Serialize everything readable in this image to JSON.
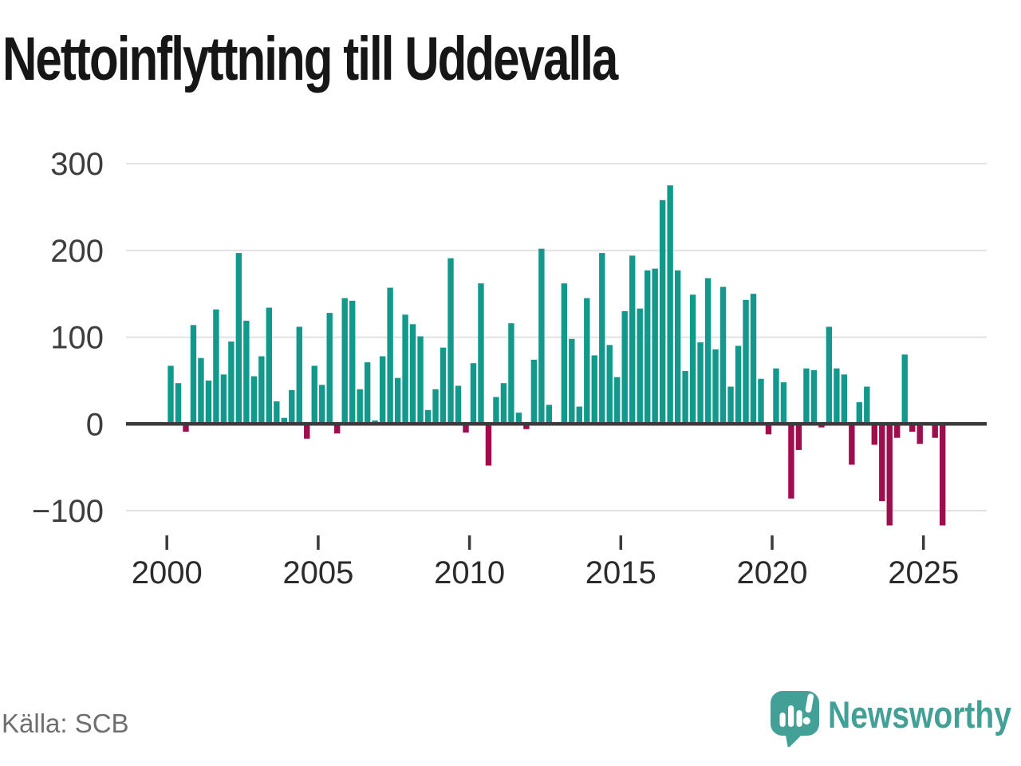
{
  "title": "Nettoinflyttning till Uddevalla",
  "source": "Källa: SCB",
  "branding": {
    "name": "Newsworthy",
    "color": "#42A097"
  },
  "chart_data": {
    "type": "bar",
    "title": "Nettoinflyttning till Uddevalla",
    "x_unit": "quarter",
    "x_range": [
      "2000Q1",
      "2025Q3"
    ],
    "ylim": [
      -130,
      310
    ],
    "grid": true,
    "legend": false,
    "positive_color": "#12998C",
    "negative_color": "#9E0D4D",
    "yticks": [
      {
        "label": "300",
        "value": 300
      },
      {
        "label": "200",
        "value": 200
      },
      {
        "label": "100",
        "value": 100
      },
      {
        "label": "0",
        "value": 0
      },
      {
        "label": "−100",
        "value": -100
      }
    ],
    "xticks": [
      {
        "label": "2000",
        "year": 2000
      },
      {
        "label": "2005",
        "year": 2005
      },
      {
        "label": "2010",
        "year": 2010
      },
      {
        "label": "2015",
        "year": 2015
      },
      {
        "label": "2020",
        "year": 2020
      },
      {
        "label": "2025",
        "year": 2025
      }
    ],
    "quarters": [
      "2000Q1",
      "2000Q2",
      "2000Q3",
      "2000Q4",
      "2001Q1",
      "2001Q2",
      "2001Q3",
      "2001Q4",
      "2002Q1",
      "2002Q2",
      "2002Q3",
      "2002Q4",
      "2003Q1",
      "2003Q2",
      "2003Q3",
      "2003Q4",
      "2004Q1",
      "2004Q2",
      "2004Q3",
      "2004Q4",
      "2005Q1",
      "2005Q2",
      "2005Q3",
      "2005Q4",
      "2006Q1",
      "2006Q2",
      "2006Q3",
      "2006Q4",
      "2007Q1",
      "2007Q2",
      "2007Q3",
      "2007Q4",
      "2008Q1",
      "2008Q2",
      "2008Q3",
      "2008Q4",
      "2009Q1",
      "2009Q2",
      "2009Q3",
      "2009Q4",
      "2010Q1",
      "2010Q2",
      "2010Q3",
      "2010Q4",
      "2011Q1",
      "2011Q2",
      "2011Q3",
      "2011Q4",
      "2012Q1",
      "2012Q2",
      "2012Q3",
      "2012Q4",
      "2013Q1",
      "2013Q2",
      "2013Q3",
      "2013Q4",
      "2014Q1",
      "2014Q2",
      "2014Q3",
      "2014Q4",
      "2015Q1",
      "2015Q2",
      "2015Q3",
      "2015Q4",
      "2016Q1",
      "2016Q2",
      "2016Q3",
      "2016Q4",
      "2017Q1",
      "2017Q2",
      "2017Q3",
      "2017Q4",
      "2018Q1",
      "2018Q2",
      "2018Q3",
      "2018Q4",
      "2019Q1",
      "2019Q2",
      "2019Q3",
      "2019Q4",
      "2020Q1",
      "2020Q2",
      "2020Q3",
      "2020Q4",
      "2021Q1",
      "2021Q2",
      "2021Q3",
      "2021Q4",
      "2022Q1",
      "2022Q2",
      "2022Q3",
      "2022Q4",
      "2023Q1",
      "2023Q2",
      "2023Q3",
      "2023Q4",
      "2024Q1",
      "2024Q2",
      "2024Q3",
      "2024Q4",
      "2025Q1",
      "2025Q2",
      "2025Q3"
    ],
    "values": [
      67,
      47,
      -9,
      114,
      76,
      50,
      132,
      57,
      95,
      197,
      119,
      55,
      78,
      134,
      26,
      7,
      39,
      112,
      -17,
      67,
      45,
      128,
      -11,
      145,
      142,
      40,
      71,
      4,
      78,
      157,
      53,
      126,
      115,
      101,
      16,
      40,
      88,
      191,
      44,
      -10,
      70,
      162,
      -48,
      31,
      47,
      116,
      13,
      -6,
      74,
      202,
      22,
      0,
      162,
      98,
      20,
      145,
      79,
      197,
      91,
      54,
      130,
      194,
      133,
      177,
      179,
      258,
      275,
      177,
      61,
      149,
      94,
      168,
      86,
      158,
      43,
      90,
      143,
      150,
      52,
      -12,
      64,
      48,
      -86,
      -30,
      64,
      62,
      -4,
      112,
      64,
      57,
      -47,
      25,
      43,
      -24,
      -89,
      -117,
      -16,
      80,
      -9,
      -23,
      0,
      -16,
      -117
    ]
  }
}
